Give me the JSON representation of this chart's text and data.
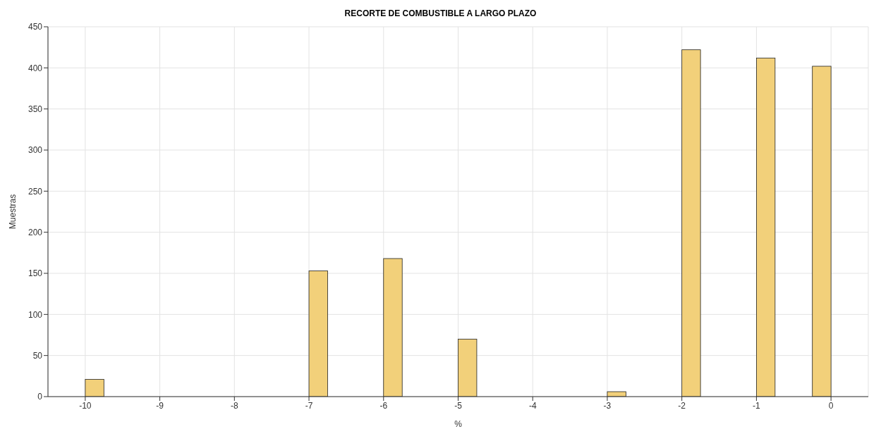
{
  "chart_data": {
    "type": "histogram",
    "title": "RECORTE DE COMBUSTIBLE A LARGO PLAZO",
    "xlabel": "%",
    "ylabel": "Muestras",
    "bins": [
      -10,
      -9.75,
      -9.5,
      -9.25,
      -9,
      -8.75,
      -8.5,
      -8.25,
      -8,
      -7.75,
      -7.5,
      -7.25,
      -7,
      -6.75,
      -6.5,
      -6.25,
      -6,
      -5.75,
      -5.5,
      -5.25,
      -5,
      -4.75,
      -4.5,
      -4.25,
      -4,
      -3.75,
      -3.5,
      -3.25,
      -3,
      -2.75,
      -2.5,
      -2.25,
      -2,
      -1.75,
      -1.5,
      -1.25,
      -1,
      -0.75,
      -0.5,
      -0.25,
      0
    ],
    "values": [
      21,
      0,
      0,
      0,
      0,
      0,
      0,
      0,
      0,
      0,
      0,
      0,
      153,
      0,
      0,
      0,
      168,
      0,
      0,
      0,
      70,
      0,
      0,
      0,
      0,
      0,
      0,
      0,
      6,
      0,
      0,
      0,
      422,
      0,
      0,
      0,
      412,
      0,
      0,
      402
    ],
    "color": "#f2d07a",
    "xlim": [
      -10.5,
      0.5
    ],
    "xticks": [
      -10,
      -9,
      -8,
      -7,
      -6,
      -5,
      -4,
      -3,
      -2,
      -1,
      0
    ],
    "ylim": [
      0,
      450
    ],
    "yticks": [
      0,
      50,
      100,
      150,
      200,
      250,
      300,
      350,
      400,
      450
    ],
    "grid": true
  }
}
